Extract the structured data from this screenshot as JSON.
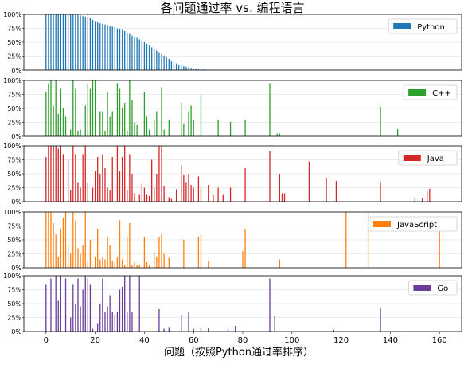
{
  "chart_data": {
    "type": "bar",
    "title": "各问题通过率 vs. 编程语言",
    "xlabel": "问题（按照Python通过率排序）",
    "ylabel": "",
    "xlim": [
      -9,
      169
    ],
    "ylim": [
      0,
      1
    ],
    "x_ticks": [
      "0",
      "20",
      "40",
      "60",
      "80",
      "100",
      "120",
      "140",
      "160"
    ],
    "y_ticks": [
      "0%",
      "25%",
      "50%",
      "75%",
      "100%"
    ],
    "grid": true,
    "legend_position": "top-right",
    "series": [
      {
        "name": "Python",
        "color": "#1f77b4",
        "x": [
          0,
          1,
          2,
          3,
          4,
          5,
          6,
          7,
          8,
          9,
          10,
          11,
          12,
          13,
          14,
          15,
          16,
          17,
          18,
          19,
          20,
          21,
          22,
          23,
          24,
          25,
          26,
          27,
          28,
          29,
          30,
          31,
          32,
          33,
          34,
          35,
          36,
          37,
          38,
          39,
          40,
          41,
          42,
          43,
          44,
          45,
          46,
          47,
          48,
          49,
          50,
          51,
          52,
          53,
          54,
          55,
          56,
          57,
          58,
          59,
          60,
          61,
          62,
          63,
          64,
          65,
          66,
          67,
          68,
          69
        ],
        "values": [
          1,
          1,
          1,
          1,
          1,
          1,
          1,
          1,
          1,
          1,
          1,
          1,
          1,
          0.99,
          0.98,
          0.97,
          0.96,
          0.95,
          0.93,
          0.9,
          0.88,
          0.86,
          0.84,
          0.83,
          0.82,
          0.81,
          0.8,
          0.78,
          0.77,
          0.75,
          0.74,
          0.72,
          0.7,
          0.67,
          0.65,
          0.62,
          0.6,
          0.58,
          0.55,
          0.52,
          0.5,
          0.47,
          0.44,
          0.41,
          0.38,
          0.35,
          0.32,
          0.29,
          0.26,
          0.23,
          0.2,
          0.17,
          0.15,
          0.12,
          0.1,
          0.08,
          0.07,
          0.06,
          0.05,
          0.04,
          0.03,
          0.025,
          0.02,
          0.015,
          0.012,
          0.01,
          0.008,
          0.006,
          0.004,
          0.002
        ]
      },
      {
        "name": "C++",
        "color": "#2ca02c",
        "x": [
          0,
          1,
          2,
          3,
          4,
          5,
          6,
          7,
          8,
          10,
          11,
          12,
          13,
          14,
          16,
          17,
          18,
          19,
          20,
          22,
          23,
          24,
          25,
          26,
          27,
          29,
          30,
          31,
          32,
          33,
          34,
          35,
          36,
          37,
          40,
          41,
          42,
          44,
          45,
          47,
          48,
          50,
          55,
          56,
          58,
          59,
          60,
          63,
          70,
          75,
          81,
          91,
          94,
          95,
          136,
          143
        ],
        "values": [
          0.8,
          0.95,
          1,
          0.55,
          1,
          0.4,
          0.85,
          0.5,
          0.35,
          0.12,
          1,
          0.85,
          0.1,
          0.12,
          0.55,
          0.95,
          0.85,
          1,
          1,
          0.45,
          0.45,
          0.1,
          0.8,
          0.35,
          0.45,
          0.95,
          0.85,
          0.5,
          0.6,
          0.1,
          1,
          0.65,
          0.25,
          0.2,
          0.8,
          0.35,
          0.12,
          0.3,
          0.45,
          0.88,
          0.12,
          0.3,
          0.6,
          0.22,
          0.45,
          0.55,
          0.3,
          0.75,
          0.3,
          0.26,
          0.3,
          0.95,
          0.05,
          0.05,
          0.53,
          0.13
        ]
      },
      {
        "name": "Java",
        "color": "#d62728",
        "x": [
          0,
          1,
          2,
          3,
          4,
          5,
          6,
          7,
          9,
          10,
          11,
          12,
          13,
          14,
          15,
          16,
          17,
          19,
          20,
          21,
          22,
          23,
          24,
          25,
          26,
          27,
          29,
          30,
          31,
          32,
          33,
          34,
          35,
          36,
          38,
          39,
          40,
          41,
          42,
          43,
          44,
          45,
          46,
          47,
          48,
          50,
          51,
          53,
          55,
          56,
          57,
          58,
          59,
          60,
          62,
          63,
          66,
          68,
          70,
          72,
          75,
          81,
          91,
          95,
          96,
          97,
          107,
          114,
          118,
          136,
          150,
          153,
          155,
          156
        ],
        "values": [
          0.8,
          1,
          1,
          1,
          1,
          0.95,
          1,
          0.85,
          0.75,
          0.2,
          1,
          0.85,
          0.35,
          0.25,
          0.85,
          1,
          0.35,
          0.25,
          0.55,
          0.8,
          0.5,
          0.85,
          0.6,
          0.25,
          0.2,
          0.8,
          1,
          0.55,
          0.8,
          1,
          0.2,
          0.85,
          0.5,
          0.15,
          0.12,
          0.32,
          0.25,
          0.12,
          0.1,
          0.75,
          0.25,
          0.5,
          1,
          1,
          0.28,
          0.08,
          0.05,
          0.22,
          0.65,
          0.48,
          0.35,
          0.5,
          0.3,
          0.25,
          0.45,
          0.25,
          0.3,
          0.12,
          0.25,
          0.12,
          0.25,
          0.6,
          0.9,
          0.5,
          0.15,
          0.15,
          0.72,
          0.43,
          0.37,
          0.35,
          0.06,
          0.06,
          0.18,
          0.23
        ]
      },
      {
        "name": "JavaScript",
        "color": "#ff7f0e",
        "x": [
          0,
          1,
          2,
          3,
          4,
          5,
          6,
          7,
          8,
          9,
          10,
          11,
          12,
          13,
          14,
          15,
          16,
          17,
          18,
          20,
          21,
          22,
          23,
          24,
          25,
          26,
          27,
          28,
          29,
          30,
          31,
          32,
          33,
          34,
          35,
          36,
          37,
          38,
          40,
          41,
          42,
          44,
          45,
          46,
          47,
          48,
          50,
          56,
          62,
          63,
          66,
          80,
          81,
          95,
          122,
          131,
          160
        ],
        "values": [
          1,
          1,
          1,
          0.8,
          0.6,
          0.2,
          0.7,
          0.9,
          1,
          0.4,
          0.25,
          1,
          0.85,
          0.35,
          0.25,
          0.4,
          1,
          0.12,
          0.5,
          0.2,
          0.7,
          0.15,
          0.2,
          0.15,
          0.55,
          0.4,
          0.12,
          0.1,
          0.2,
          0.85,
          0.15,
          0.05,
          0.55,
          0.8,
          0.05,
          0.1,
          0.05,
          0.05,
          0.55,
          0.1,
          0.05,
          0.28,
          0.2,
          0.55,
          0.6,
          0.25,
          0.18,
          0.5,
          0.55,
          0.58,
          0.12,
          0.3,
          0.7,
          0.15,
          1,
          1,
          0.65
        ]
      },
      {
        "name": "Go",
        "color": "#6a3d9a",
        "x": [
          0,
          2,
          4,
          5,
          6,
          8,
          10,
          11,
          12,
          13,
          14,
          15,
          16,
          17,
          18,
          19,
          21,
          22,
          23,
          24,
          25,
          26,
          27,
          28,
          29,
          30,
          31,
          32,
          33,
          34,
          35,
          38,
          46,
          48,
          50,
          55,
          58,
          60,
          63,
          66,
          74,
          77,
          91,
          93,
          117,
          136
        ],
        "values": [
          0.85,
          0.95,
          1,
          0.55,
          1,
          0.95,
          0.25,
          0.85,
          0.5,
          0.95,
          0.45,
          0.75,
          1,
          0.95,
          0.85,
          0.05,
          0.15,
          0.5,
          0.95,
          0.35,
          0.45,
          0.65,
          0.35,
          0.3,
          0.35,
          0.75,
          0.8,
          1,
          0.35,
          1,
          0.35,
          1,
          0.4,
          0.05,
          0.08,
          0.3,
          0.35,
          0.05,
          0.06,
          0.06,
          0.05,
          0.1,
          0.95,
          0.27,
          0.03,
          0.42
        ]
      }
    ]
  }
}
